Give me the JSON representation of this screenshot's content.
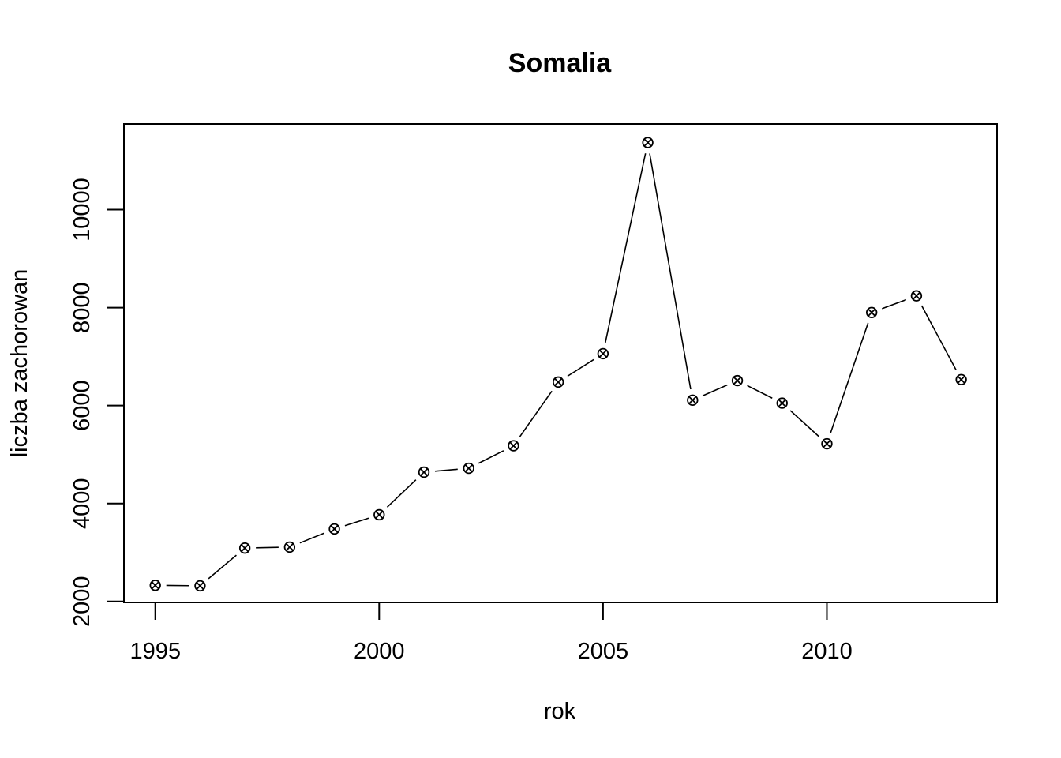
{
  "chart_data": {
    "type": "line",
    "title": "Somalia",
    "xlabel": "rok",
    "ylabel": "liczba zachorowan",
    "x": [
      1995,
      1996,
      1997,
      1998,
      1999,
      2000,
      2001,
      2002,
      2003,
      2004,
      2005,
      2006,
      2007,
      2008,
      2009,
      2010,
      2011,
      2012,
      2013
    ],
    "series": [
      {
        "values": [
          2330,
          2320,
          3090,
          3110,
          3480,
          3770,
          4640,
          4720,
          5180,
          6480,
          7060,
          11370,
          6110,
          6510,
          6050,
          5220,
          7900,
          8240,
          6530
        ],
        "marker": "circle-x",
        "line_style": "overplotted lines and points",
        "color": "#000000"
      }
    ],
    "xlim": [
      1994.3,
      2013.8
    ],
    "ylim": [
      1980,
      11750
    ],
    "x_ticks": [
      1995,
      2000,
      2005,
      2010
    ],
    "y_ticks": [
      2000,
      4000,
      6000,
      8000,
      10000
    ],
    "x_tick_labels": [
      "1995",
      "2000",
      "2005",
      "2010"
    ],
    "y_tick_labels": [
      "2000",
      "4000",
      "6000",
      "8000",
      "10000"
    ],
    "grid": false,
    "legend": "none"
  }
}
